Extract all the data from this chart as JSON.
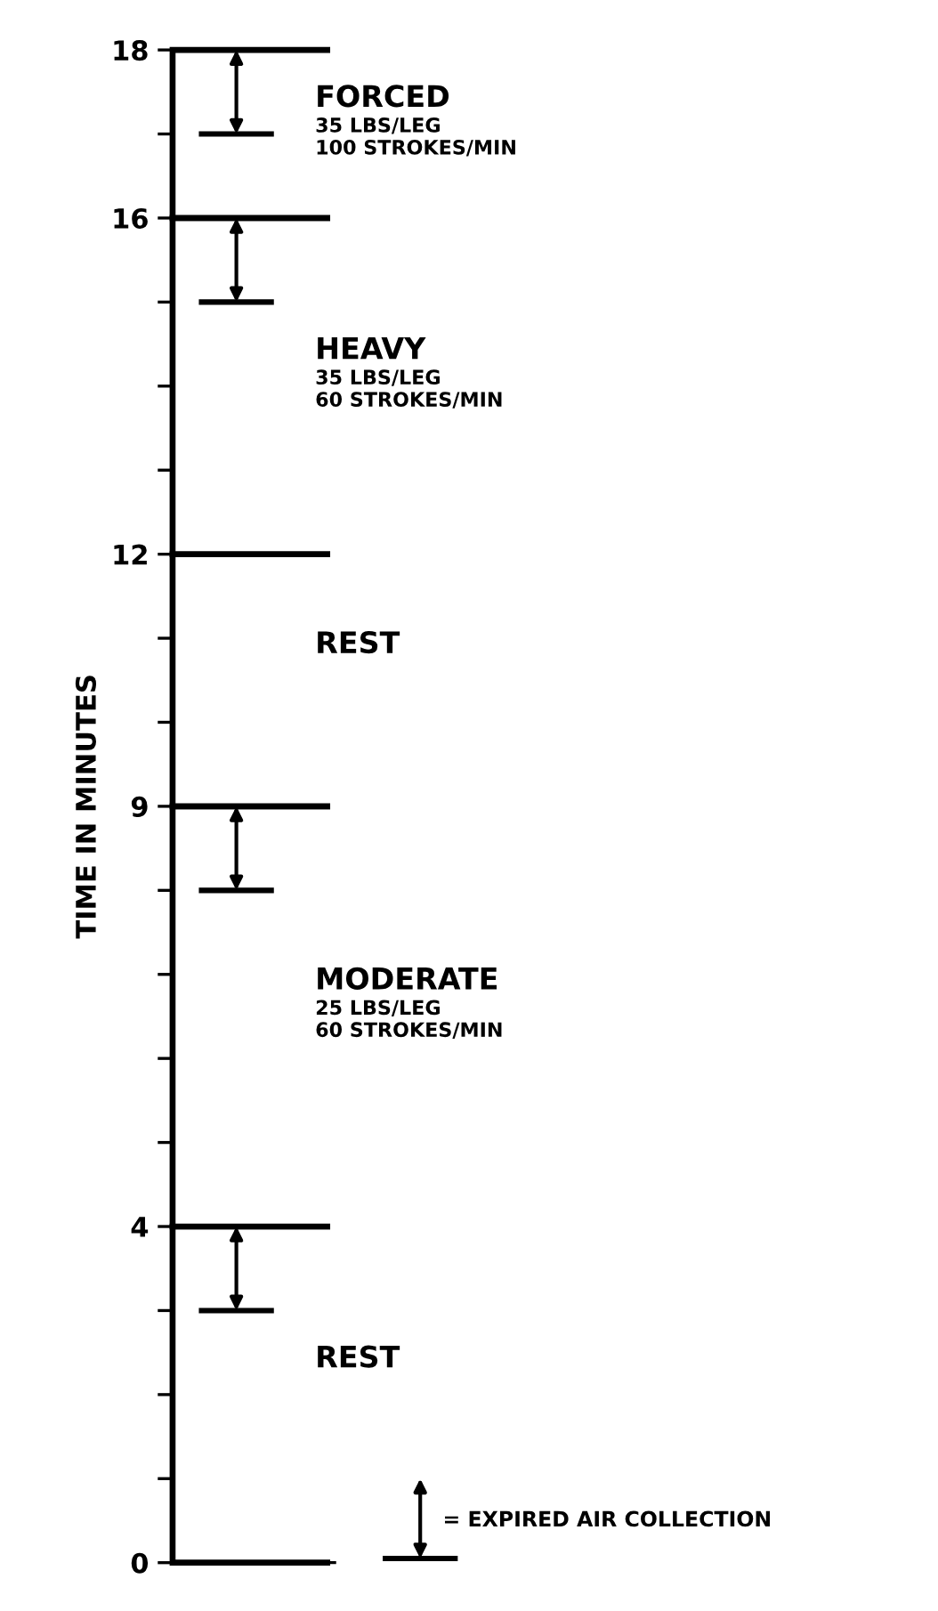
{
  "chart_data": {
    "type": "bar",
    "stacked": true,
    "ylabel": "TIME IN MINUTES",
    "categories": [
      null
    ],
    "ylim": [
      0,
      18
    ],
    "yticks": [
      0,
      {
        "value": 1,
        "label": null
      },
      {
        "value": 2,
        "label": null
      },
      {
        "value": 3,
        "label": null
      },
      4,
      {
        "value": 5,
        "label": null
      },
      {
        "value": 6,
        "label": null
      },
      {
        "value": 7,
        "label": null
      },
      {
        "value": 8,
        "label": null
      },
      9,
      {
        "value": 10,
        "label": null
      },
      {
        "value": 11,
        "label": null
      },
      12,
      {
        "value": 13,
        "label": null
      },
      {
        "value": 14,
        "label": null
      },
      {
        "value": 15,
        "label": null
      },
      16,
      {
        "value": 17,
        "label": null
      },
      18
    ],
    "series": [
      {
        "name": "REST",
        "color": "#ffffff",
        "values": [
          4
        ]
      },
      {
        "name": "MODERATE\n25 LBS/LEG\n60 STROKES/MIN",
        "color": "#ffffff",
        "values": [
          5
        ]
      },
      {
        "name": "REST",
        "color": "#ffffff",
        "values": [
          3
        ]
      },
      {
        "name": "HEAVY\n35 LBS/LEG\n60 STROKES/MIN",
        "color": "#ffffff",
        "values": [
          4
        ]
      },
      {
        "name": "FORCED\n35 LBS/LEG\n100 STROKES/MIN",
        "color": "#ffffff",
        "values": [
          2
        ]
      }
    ],
    "ref_lines": [
      {
        "axis": "y",
        "value": 17,
        "color": "#000000"
      },
      {
        "axis": "y",
        "value": 15,
        "color": "#000000"
      },
      {
        "axis": "y",
        "value": 8,
        "color": "#000000"
      },
      {
        "axis": "y",
        "value": 3,
        "color": "#000000"
      }
    ],
    "annotations": [
      "= EXPIRED AIR COLLECTION"
    ]
  }
}
